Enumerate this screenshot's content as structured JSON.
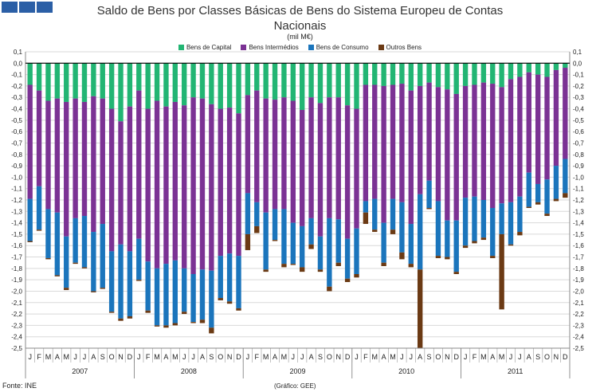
{
  "header": {
    "title_line1": "Saldo de Bens por Classes Básicas de Bens do Sistema Europeu de Contas",
    "title_line2": "Nacionais",
    "unit": "(mil M€)"
  },
  "footer": {
    "source": "Fonte: INE",
    "credit": "(Gráfico: GEE)"
  },
  "colors": {
    "capital": "#22b573",
    "intermedios": "#7b3294",
    "consumo": "#1b75bc",
    "outros": "#6b3a14",
    "logo": "#2b5fa6"
  },
  "chart_data": {
    "type": "bar",
    "stacked": true,
    "title": "Saldo de Bens por Classes Básicas de Bens do Sistema Europeu de Contas Nacionais",
    "ylabel": "(mil M€)",
    "ylim": [
      -2.5,
      0.1
    ],
    "y_ticks": [
      0.1,
      0.0,
      -0.1,
      -0.2,
      -0.3,
      -0.4,
      -0.5,
      -0.6,
      -0.7,
      -0.8,
      -0.9,
      -1.0,
      -1.1,
      -1.2,
      -1.3,
      -1.4,
      -1.5,
      -1.6,
      -1.7,
      -1.8,
      -1.9,
      -2.0,
      -2.1,
      -2.2,
      -2.3,
      -2.4,
      -2.5
    ],
    "y_tick_labels": [
      "0,1",
      "0,0",
      "-0,1",
      "-0,2",
      "-0,3",
      "-0,4",
      "-0,5",
      "-0,6",
      "-0,7",
      "-0,8",
      "-0,9",
      "-1,0",
      "-1,1",
      "-1,2",
      "-1,3",
      "-1,4",
      "-1,5",
      "-1,6",
      "-1,7",
      "-1,8",
      "-1,9",
      "-2,0",
      "-2,1",
      "-2,2",
      "-2,3",
      "-2,4",
      "-2,5"
    ],
    "legend_position": "top-center",
    "months": [
      "J",
      "F",
      "M",
      "A",
      "M",
      "J",
      "J",
      "A",
      "S",
      "O",
      "N",
      "D",
      "J",
      "F",
      "M",
      "A",
      "M",
      "J",
      "J",
      "A",
      "S",
      "O",
      "N",
      "D",
      "J",
      "F",
      "M",
      "A",
      "M",
      "J",
      "J",
      "A",
      "S",
      "O",
      "N",
      "D",
      "J",
      "F",
      "M",
      "A",
      "M",
      "J",
      "J",
      "A",
      "S",
      "O",
      "N",
      "D",
      "J",
      "F",
      "M",
      "A",
      "M",
      "J",
      "J",
      "A",
      "S",
      "O",
      "N",
      "D"
    ],
    "years": [
      "2007",
      "2008",
      "2009",
      "2010",
      "2011"
    ],
    "series": [
      {
        "name": "Bens de Capital",
        "key": "capital",
        "values": [
          -0.19,
          -0.24,
          -0.33,
          -0.31,
          -0.34,
          -0.31,
          -0.34,
          -0.29,
          -0.31,
          -0.4,
          -0.51,
          -0.38,
          -0.24,
          -0.4,
          -0.33,
          -0.38,
          -0.34,
          -0.37,
          -0.3,
          -0.31,
          -0.36,
          -0.4,
          -0.39,
          -0.44,
          -0.28,
          -0.24,
          -0.31,
          -0.32,
          -0.3,
          -0.33,
          -0.41,
          -0.3,
          -0.35,
          -0.3,
          -0.3,
          -0.37,
          -0.4,
          -0.19,
          -0.19,
          -0.2,
          -0.19,
          -0.18,
          -0.24,
          -0.2,
          -0.17,
          -0.21,
          -0.23,
          -0.27,
          -0.2,
          -0.19,
          -0.17,
          -0.18,
          -0.21,
          -0.14,
          -0.12,
          -0.08,
          -0.1,
          -0.12,
          -0.06,
          -0.04
        ]
      },
      {
        "name": "Bens Intermédios",
        "key": "intermedios",
        "values": [
          -1.0,
          -0.84,
          -0.95,
          -1.0,
          -1.18,
          -1.05,
          -1.0,
          -1.19,
          -1.1,
          -1.25,
          -1.08,
          -1.27,
          -1.3,
          -1.34,
          -1.47,
          -1.38,
          -1.39,
          -1.43,
          -1.55,
          -1.5,
          -1.46,
          -1.29,
          -1.28,
          -1.25,
          -0.86,
          -0.98,
          -1.0,
          -0.96,
          -0.98,
          -1.07,
          -1.02,
          -1.06,
          -1.17,
          -1.06,
          -1.07,
          -1.17,
          -1.05,
          -1.02,
          -1.0,
          -1.2,
          -1.0,
          -1.04,
          -1.17,
          -0.95,
          -0.86,
          -1.0,
          -1.15,
          -1.11,
          -0.98,
          -0.98,
          -1.03,
          -1.09,
          -1.02,
          -1.08,
          -1.05,
          -0.88,
          -0.96,
          -0.9,
          -0.84,
          -0.8
        ]
      },
      {
        "name": "Bens de Consumo",
        "key": "consumo",
        "values": [
          -0.37,
          -0.38,
          -0.43,
          -0.55,
          -0.45,
          -0.39,
          -0.45,
          -0.52,
          -0.56,
          -0.53,
          -0.65,
          -0.57,
          -0.36,
          -0.43,
          -0.5,
          -0.54,
          -0.55,
          -0.38,
          -0.42,
          -0.44,
          -0.5,
          -0.37,
          -0.42,
          -0.46,
          -0.36,
          -0.21,
          -0.5,
          -0.27,
          -0.48,
          -0.36,
          -0.36,
          -0.23,
          -0.29,
          -0.6,
          -0.38,
          -0.35,
          -0.4,
          -0.1,
          -0.27,
          -0.35,
          -0.27,
          -0.44,
          -0.35,
          -0.66,
          -0.24,
          -0.48,
          -0.32,
          -0.45,
          -0.42,
          -0.39,
          -0.33,
          -0.42,
          -0.27,
          -0.37,
          -0.31,
          -0.3,
          -0.16,
          -0.3,
          -0.29,
          -0.3
        ]
      },
      {
        "name": "Outros Bens",
        "key": "outros",
        "values": [
          -0.01,
          -0.01,
          -0.01,
          -0.01,
          -0.02,
          -0.01,
          -0.01,
          -0.01,
          -0.01,
          -0.01,
          -0.02,
          -0.02,
          -0.01,
          -0.02,
          -0.01,
          -0.02,
          -0.02,
          -0.02,
          -0.01,
          -0.03,
          -0.05,
          -0.02,
          -0.02,
          -0.02,
          -0.14,
          -0.06,
          -0.02,
          -0.01,
          -0.03,
          -0.01,
          -0.04,
          -0.04,
          -0.02,
          -0.04,
          -0.03,
          -0.03,
          -0.03,
          -0.1,
          -0.02,
          -0.03,
          -0.04,
          -0.06,
          -0.03,
          -0.69,
          -0.01,
          -0.02,
          -0.02,
          -0.02,
          -0.02,
          -0.02,
          -0.02,
          -0.02,
          -0.66,
          -0.01,
          -0.03,
          -0.01,
          -0.02,
          -0.02,
          -0.02,
          -0.04
        ]
      }
    ]
  }
}
